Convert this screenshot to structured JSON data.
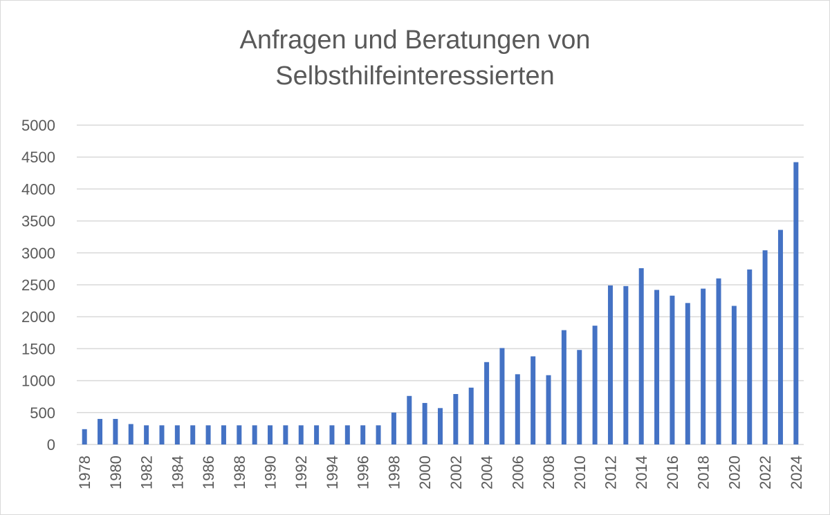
{
  "chart_data": {
    "type": "bar",
    "title_lines": [
      "Anfragen und Beratungen von",
      "Selbsthilfeinteressierten"
    ],
    "xlabel": "",
    "ylabel": "",
    "ylim": [
      0,
      5000
    ],
    "y_ticks": [
      0,
      500,
      1000,
      1500,
      2000,
      2500,
      3000,
      3500,
      4000,
      4500,
      5000
    ],
    "grid": "horizontal",
    "bar_color": "#4472c4",
    "grid_color": "#d9d9d9",
    "x_tick_labels_every": 2,
    "categories": [
      "1978",
      "1979",
      "1980",
      "1981",
      "1982",
      "1983",
      "1984",
      "1985",
      "1986",
      "1987",
      "1988",
      "1989",
      "1990",
      "1991",
      "1992",
      "1993",
      "1994",
      "1995",
      "1996",
      "1997",
      "1998",
      "1999",
      "2000",
      "2001",
      "2002",
      "2003",
      "2004",
      "2005",
      "2006",
      "2007",
      "2008",
      "2009",
      "2010",
      "2011",
      "2012",
      "2013",
      "2014",
      "2015",
      "2016",
      "2017",
      "2018",
      "2019",
      "2020",
      "2021",
      "2022",
      "2023",
      "2024"
    ],
    "values": [
      240,
      400,
      400,
      320,
      300,
      300,
      300,
      300,
      300,
      300,
      300,
      300,
      300,
      300,
      300,
      300,
      300,
      300,
      300,
      300,
      500,
      760,
      650,
      570,
      790,
      890,
      1290,
      1510,
      1100,
      1380,
      1085,
      1790,
      1480,
      1860,
      2490,
      2480,
      2760,
      2420,
      2330,
      2215,
      2440,
      2600,
      2170,
      2740,
      3040,
      3360,
      4420
    ]
  }
}
